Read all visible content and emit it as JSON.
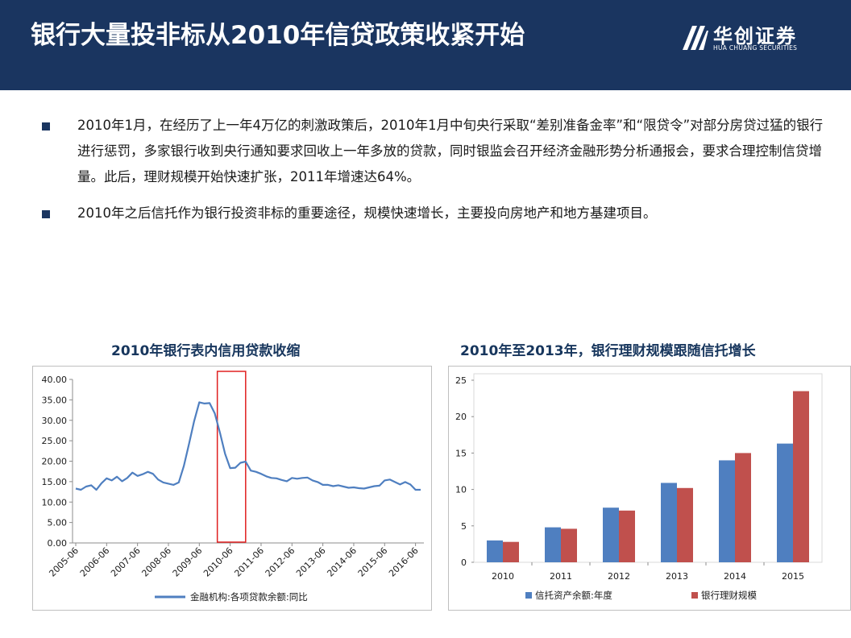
{
  "header": {
    "title": "银行大量投非标从2010年信贷政策收紧开始",
    "logo_text": "华创证券",
    "logo_sub": "HUA CHUANG SECURITIES"
  },
  "bullets": [
    "2010年1月，在经历了上一年4万亿的刺激政策后，2010年1月中旬央行采取“差别准备金率”和“限贷令”对部分房贷过猛的银行进行惩罚，多家银行收到央行通知要求回收上一年多放的贷款，同时银监会召开经济金融形势分析通报会，要求合理控制信贷增量。此后，理财规模开始快速扩张，2011年增速达64%。",
    "2010年之后信托作为银行投资非标的重要途径，规模快速增长，主要投向房地产和地方基建项目。"
  ],
  "colors": {
    "header_bg": "#1a3560",
    "line": "#4f7fc0",
    "highlight": "#e02020",
    "bar_blue": "#4f7fc0",
    "bar_red": "#c0504d"
  },
  "chart_data": [
    {
      "type": "line",
      "title": "2010年银行表内信用贷款收缩",
      "ylim": [
        0,
        40
      ],
      "ytick_labels": [
        "0.00",
        "5.00",
        "10.00",
        "15.00",
        "20.00",
        "25.00",
        "30.00",
        "35.00",
        "40.00"
      ],
      "xtick_labels": [
        "2005-06",
        "2006-06",
        "2007-06",
        "2008-06",
        "2009-06",
        "2010-06",
        "2011-06",
        "2012-06",
        "2013-06",
        "2014-06",
        "2015-06",
        "2016-06"
      ],
      "highlight_range": [
        "2010-01",
        "2010-12"
      ],
      "series": [
        {
          "name": "金融机构:各项贷款余额:同比",
          "x": [
            "2005-06",
            "2005-08",
            "2005-10",
            "2005-12",
            "2006-02",
            "2006-04",
            "2006-06",
            "2006-08",
            "2006-10",
            "2006-12",
            "2007-02",
            "2007-04",
            "2007-06",
            "2007-08",
            "2007-10",
            "2007-12",
            "2008-02",
            "2008-04",
            "2008-06",
            "2008-08",
            "2008-10",
            "2008-12",
            "2009-02",
            "2009-04",
            "2009-06",
            "2009-08",
            "2009-10",
            "2009-12",
            "2010-02",
            "2010-04",
            "2010-06",
            "2010-08",
            "2010-10",
            "2010-12",
            "2011-02",
            "2011-04",
            "2011-06",
            "2011-08",
            "2011-10",
            "2011-12",
            "2012-02",
            "2012-04",
            "2012-06",
            "2012-08",
            "2012-10",
            "2012-12",
            "2013-02",
            "2013-04",
            "2013-06",
            "2013-08",
            "2013-10",
            "2013-12",
            "2014-02",
            "2014-04",
            "2014-06",
            "2014-08",
            "2014-10",
            "2014-12",
            "2015-02",
            "2015-04",
            "2015-06",
            "2015-08",
            "2015-10",
            "2015-12",
            "2016-02",
            "2016-04",
            "2016-06",
            "2016-08"
          ],
          "values": [
            13.3,
            13.0,
            13.8,
            14.1,
            13.0,
            14.6,
            15.8,
            15.3,
            16.2,
            15.1,
            15.9,
            17.2,
            16.4,
            16.8,
            17.4,
            16.9,
            15.5,
            14.8,
            14.5,
            14.2,
            14.8,
            18.8,
            24.2,
            29.8,
            34.4,
            34.1,
            34.2,
            31.7,
            27.0,
            21.8,
            18.3,
            18.4,
            19.6,
            19.9,
            17.7,
            17.4,
            16.9,
            16.3,
            15.9,
            15.8,
            15.4,
            15.1,
            15.9,
            15.7,
            15.9,
            16.0,
            15.3,
            14.9,
            14.2,
            14.2,
            13.9,
            14.1,
            13.8,
            13.5,
            13.6,
            13.4,
            13.3,
            13.6,
            13.9,
            14.0,
            15.3,
            15.5,
            14.9,
            14.3,
            14.9,
            14.3,
            13.0,
            13.0
          ]
        }
      ]
    },
    {
      "type": "bar",
      "title": "2010年至2013年，银行理财规模跟随信托增长",
      "categories": [
        "2010",
        "2011",
        "2012",
        "2013",
        "2014",
        "2015"
      ],
      "ylim": [
        0,
        25
      ],
      "ytick_labels": [
        "0",
        "5",
        "10",
        "15",
        "20",
        "25"
      ],
      "series": [
        {
          "name": "信托资产余额:年度",
          "values": [
            3.0,
            4.8,
            7.5,
            10.9,
            14.0,
            16.3
          ]
        },
        {
          "name": "银行理财规模",
          "values": [
            2.8,
            4.6,
            7.1,
            10.2,
            15.0,
            23.5
          ]
        }
      ]
    }
  ]
}
